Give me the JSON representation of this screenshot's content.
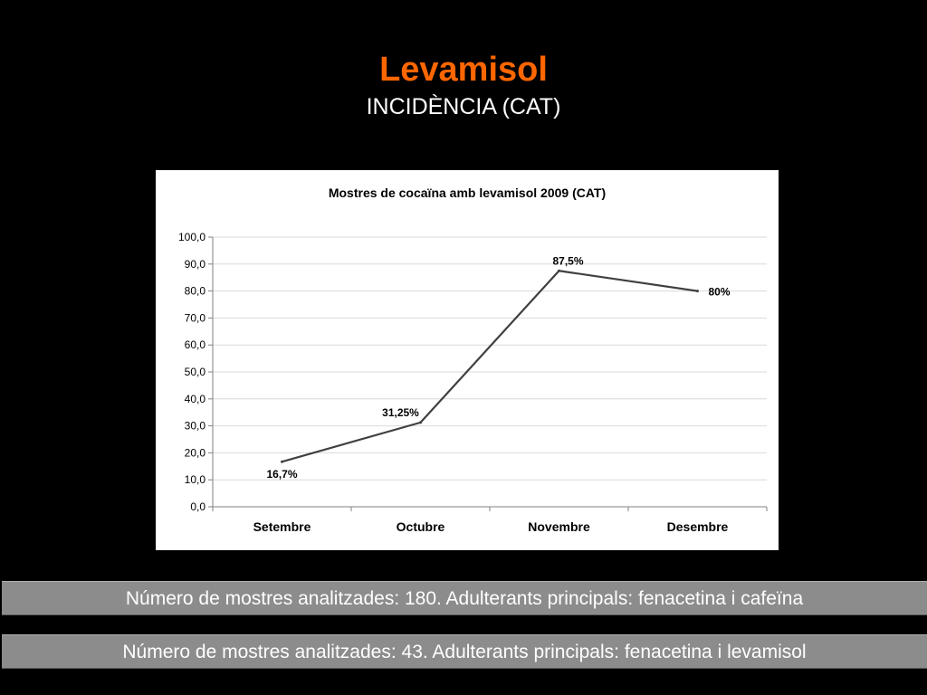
{
  "slide": {
    "title": "Levamisol",
    "subtitle": "INCIDÈNCIA (CAT)"
  },
  "chart_data": {
    "type": "line",
    "title": "Mostres de cocaïna amb levamisol 2009 (CAT)",
    "categories": [
      "Setembre",
      "Octubre",
      "Novembre",
      "Desembre"
    ],
    "series": [
      {
        "values": [
          16.7,
          31.25,
          87.5,
          80
        ]
      }
    ],
    "data_labels": [
      "16,7%",
      "31,25%",
      "87,5%",
      "80%"
    ],
    "y_ticks": [
      "0,0",
      "10,0",
      "20,0",
      "30,0",
      "40,0",
      "50,0",
      "60,0",
      "70,0",
      "80,0",
      "90,0",
      "100,0"
    ],
    "ylim": [
      0,
      100
    ],
    "grid": true,
    "legend": "none",
    "line_color": "#404040"
  },
  "info_bars": [
    "Número de mostres analitzades: 180. Adulterants principals: fenacetina i cafeïna",
    "Número de mostres analitzades:  43. Adulterants principals: fenacetina i levamisol"
  ]
}
